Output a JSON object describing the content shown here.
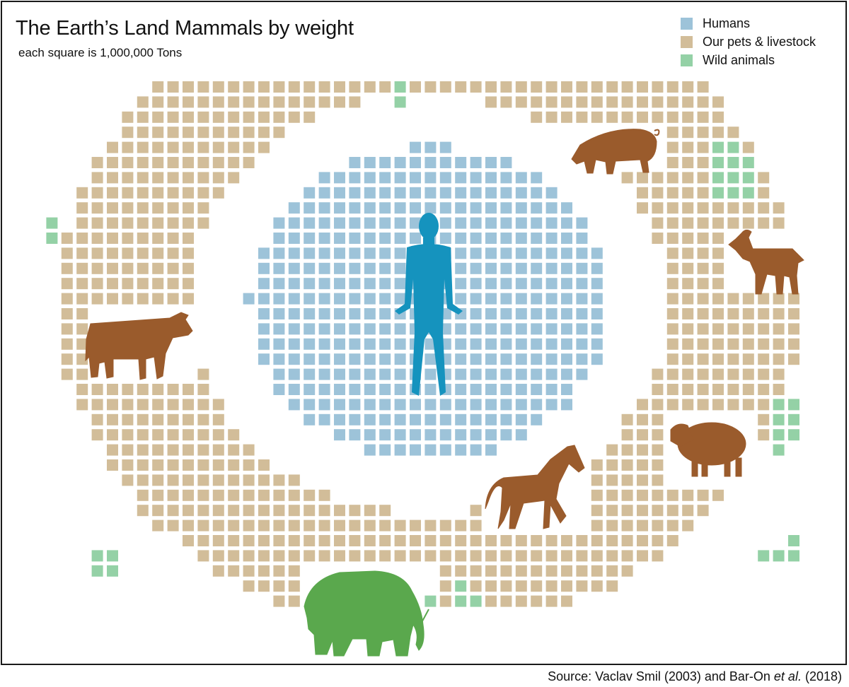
{
  "title": "The Earth’s Land Mammals by weight",
  "subtitle": "each square is 1,000,000 Tons",
  "source": {
    "prefix": "Source: Vaclav Smil (2003) and Bar-On ",
    "etal": "et al.",
    "suffix": " (2018)"
  },
  "colors": {
    "humans": "#9dc3d9",
    "livestock": "#d2bd99",
    "wild": "#94d1a6",
    "human_figure": "#1593be",
    "livestock_animal": "#9a5b2c",
    "wild_animal": "#5aa84d"
  },
  "legend": [
    {
      "key": "humans",
      "label": "Humans"
    },
    {
      "key": "livestock",
      "label": "Our pets & livestock"
    },
    {
      "key": "wild",
      "label": "Wild animals"
    }
  ],
  "icons": [
    "human-icon",
    "cow-icon",
    "pig-icon",
    "goat-icon",
    "sheep-icon",
    "horse-icon",
    "elephant-icon"
  ],
  "chart_data": {
    "type": "waffle",
    "unit": "1,000,000 Tons per square",
    "categories": [
      "Humans",
      "Our pets & livestock",
      "Wild animals"
    ],
    "values": [
      390,
      630,
      40
    ]
  }
}
